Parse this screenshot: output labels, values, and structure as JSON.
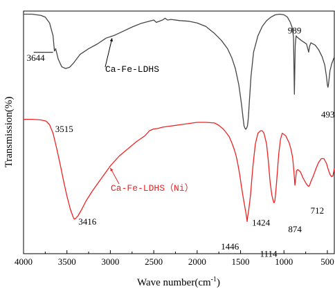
{
  "chart_data": {
    "type": "line",
    "title": "",
    "xlabel": "Wave number(cm",
    "xlabel_sup": "-1",
    "xlabel_close": ")",
    "ylabel": "Transmission(%)",
    "xlim": [
      4000,
      420
    ],
    "x_reversed": true,
    "xticks": [
      4000,
      3500,
      3000,
      2500,
      2000,
      1500,
      1000,
      500
    ],
    "ylim": [
      0,
      100
    ],
    "y_ticks_labeled": false,
    "grid": false,
    "series": [
      {
        "name": "Ca-Fe-LDHS",
        "color": "#444444",
        "x": [
          4000,
          3900,
          3800,
          3750,
          3700,
          3660,
          3644,
          3630,
          3600,
          3560,
          3515,
          3470,
          3420,
          3350,
          3250,
          3150,
          3050,
          2950,
          2850,
          2750,
          2650,
          2550,
          2500,
          2470,
          2400,
          2370,
          2340,
          2300,
          2200,
          2100,
          2000,
          1900,
          1800,
          1720,
          1650,
          1600,
          1560,
          1520,
          1490,
          1470,
          1460,
          1450,
          1440,
          1430,
          1420,
          1410,
          1400,
          1380,
          1350,
          1300,
          1250,
          1200,
          1150,
          1100,
          1050,
          1000,
          960,
          930,
          905,
          890,
          880,
          870,
          860,
          850,
          800,
          760,
          740,
          715,
          705,
          690,
          640,
          600,
          560,
          530,
          510,
          500,
          493,
          486,
          470,
          450,
          430,
          420
        ],
        "y": [
          98.5,
          98.5,
          97.5,
          96,
          91,
          80,
          67,
          69,
          60,
          53.5,
          52,
          53,
          57,
          64,
          69,
          73,
          78,
          80.5,
          84,
          87.5,
          90.5,
          92.5,
          93.5,
          91.5,
          93.5,
          95,
          93.5,
          94,
          93,
          92.5,
          91,
          88,
          82,
          76,
          69,
          61,
          52,
          38,
          22,
          9,
          3,
          1,
          0,
          1,
          3,
          10,
          22,
          45,
          66,
          80,
          88,
          93,
          96,
          98,
          98.5,
          98,
          96,
          92,
          87,
          79,
          30,
          72,
          80,
          79,
          76,
          74,
          73,
          66,
          71,
          74,
          72,
          68,
          62,
          55,
          45,
          38,
          36,
          39,
          50,
          56,
          60,
          62
        ],
        "annotations": [
          {
            "x": 3644,
            "text": "3644"
          },
          {
            "x": 3515,
            "text": "3515"
          },
          {
            "x": 989,
            "text": "989"
          },
          {
            "x": 493,
            "text": "493"
          }
        ]
      },
      {
        "name": "Ca-Fe-LDHS（Ni）",
        "color": "#ee2222",
        "x": [
          4000,
          3900,
          3800,
          3740,
          3700,
          3660,
          3620,
          3580,
          3540,
          3500,
          3460,
          3430,
          3416,
          3400,
          3370,
          3330,
          3280,
          3200,
          3100,
          3000,
          2900,
          2800,
          2700,
          2600,
          2550,
          2520,
          2500,
          2450,
          2400,
          2300,
          2200,
          2100,
          2000,
          1900,
          1800,
          1750,
          1700,
          1660,
          1630,
          1600,
          1570,
          1550,
          1530,
          1510,
          1490,
          1470,
          1455,
          1446,
          1438,
          1430,
          1424,
          1418,
          1405,
          1385,
          1360,
          1330,
          1300,
          1270,
          1250,
          1230,
          1200,
          1180,
          1160,
          1140,
          1120,
          1114,
          1105,
          1090,
          1060,
          1040,
          1020,
          1000,
          980,
          960,
          940,
          920,
          900,
          885,
          874,
          866,
          855,
          840,
          810,
          780,
          750,
          730,
          715,
          705,
          690,
          660,
          630,
          600,
          570,
          540,
          510,
          490,
          470,
          450,
          435,
          425,
          420
        ],
        "y": [
          98.5,
          98.5,
          98,
          97,
          94,
          87,
          75,
          62,
          48,
          35,
          24,
          18,
          16,
          16.5,
          19,
          24,
          31,
          40,
          50,
          60,
          68,
          74,
          80,
          85,
          89,
          90,
          90.5,
          91,
          92,
          93,
          94,
          95,
          96,
          96,
          95.5,
          93.5,
          90.5,
          87,
          84,
          79,
          73,
          68,
          61,
          53,
          43,
          34,
          28,
          24,
          21,
          17,
          14,
          18,
          24,
          36,
          58,
          78,
          87,
          89,
          89,
          87,
          78,
          64,
          47,
          36,
          30,
          29.5,
          31,
          42,
          70,
          82,
          87,
          86,
          85,
          82,
          79,
          74,
          67,
          55,
          44,
          49,
          56,
          57,
          55,
          50,
          46,
          44,
          43,
          44,
          47,
          52,
          58,
          63,
          66,
          66,
          62,
          57,
          53,
          51,
          52,
          56,
          58
        ],
        "annotations": [
          {
            "x": 3416,
            "text": "3416"
          },
          {
            "x": 1446,
            "text": "1446"
          },
          {
            "x": 1424,
            "text": "1424"
          },
          {
            "x": 1114,
            "text": "1114"
          },
          {
            "x": 874,
            "text": "874"
          },
          {
            "x": 712,
            "text": "712"
          }
        ]
      }
    ]
  }
}
